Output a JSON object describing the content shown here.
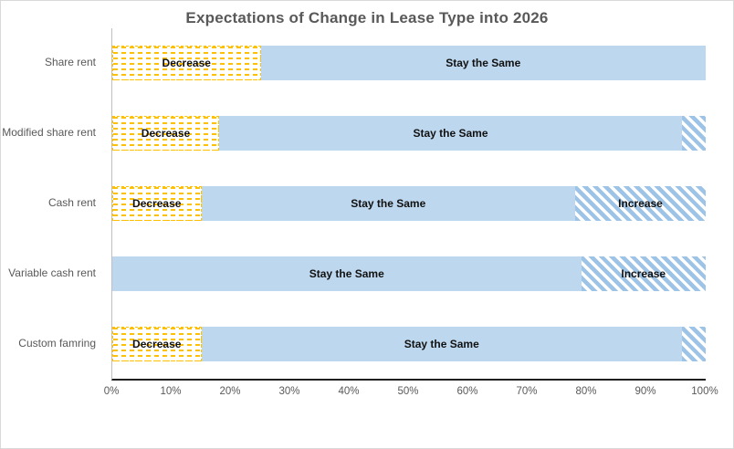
{
  "window": {
    "background": "#ffffff",
    "border_color": "#d9d9d9"
  },
  "chart_data": {
    "type": "bar",
    "orientation": "horizontal",
    "stacked": true,
    "title": "Expectations of Change in Lease Type into 2026",
    "categories": [
      "Share rent",
      "Modified share rent",
      "Cash rent",
      "Variable cash rent",
      "Custom famring"
    ],
    "series": [
      {
        "name": "Decrease",
        "values": [
          25,
          18,
          15,
          0,
          15
        ]
      },
      {
        "name": "Stay the Same",
        "values": [
          75,
          78,
          63,
          79,
          81
        ]
      },
      {
        "name": "Increase",
        "values": [
          0,
          4,
          22,
          21,
          4
        ]
      }
    ],
    "segment_labels_shown": [
      [
        "Decrease",
        "Stay the Same",
        ""
      ],
      [
        "Decrease",
        "Stay the Same",
        ""
      ],
      [
        "Decrease",
        "Stay the Same",
        "Increase"
      ],
      [
        "",
        "Stay the Same",
        "Increase"
      ],
      [
        "Decrease",
        "Stay the Same",
        ""
      ]
    ],
    "x_ticks": [
      "0%",
      "10%",
      "20%",
      "30%",
      "40%",
      "50%",
      "60%",
      "70%",
      "80%",
      "90%",
      "100%"
    ],
    "xlim": [
      0,
      100
    ],
    "legend": "none",
    "grid": "off",
    "colors": {
      "decrease_pattern": "#ffc000",
      "stay_fill": "#bdd7ee",
      "increase_pattern": "#9dc3e6",
      "axis_line": "#1f1f1f",
      "value_axis_line": "#bfbfbf",
      "title_text": "#595959",
      "axis_text": "#595959",
      "data_label_text": "#111111"
    }
  }
}
